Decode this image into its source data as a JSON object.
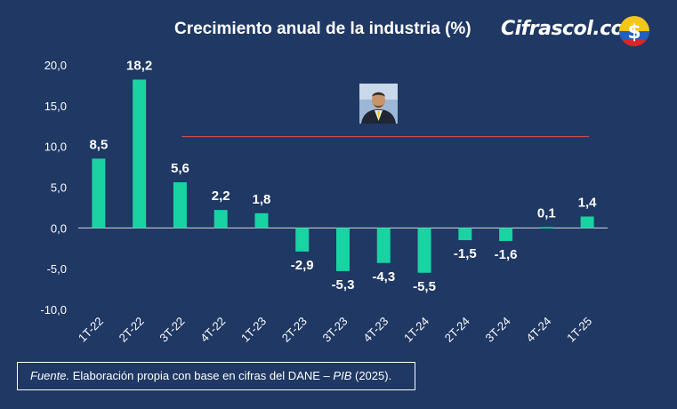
{
  "header": {
    "title": "Crecimiento anual de la industria (%)",
    "brand": "Cifrascol.com",
    "brand_logo_icon": "dollar-coin-colombia-flag-icon"
  },
  "portrait_icon": "person-portrait-photo",
  "source": {
    "label": "Fuente.",
    "text_before": "Elaboración propia con base en cifras del DANE –",
    "text_italic": "PIB",
    "text_after": "(2025)."
  },
  "colors": {
    "background": "#1f3864",
    "bar": "#19d3a2",
    "reference_line": "#e0504f",
    "text": "#ffffff"
  },
  "chart_data": {
    "type": "bar",
    "title": "Crecimiento anual de la industria (%)",
    "categories": [
      "1T-22",
      "2T-22",
      "3T-22",
      "4T-22",
      "1T-23",
      "2T-23",
      "3T-23",
      "4T-23",
      "1T-24",
      "2T-24",
      "3T-24",
      "4T-24",
      "1T-25"
    ],
    "values": [
      8.5,
      18.2,
      5.6,
      2.2,
      1.8,
      -2.9,
      -5.3,
      -4.3,
      -5.5,
      -1.5,
      -1.6,
      0.1,
      1.4
    ],
    "value_labels": [
      "8,5",
      "18,2",
      "5,6",
      "2,2",
      "1,8",
      "-2,9",
      "-5,3",
      "-4,3",
      "-5,5",
      "-1,5",
      "-1,6",
      "0,1",
      "1,4"
    ],
    "ylim": [
      -10,
      20
    ],
    "yticks": [
      20,
      15,
      10,
      5,
      0,
      -5,
      -10
    ],
    "ytick_labels": [
      "20,0",
      "15,0",
      "10,0",
      "5,0",
      "0,0",
      "-5,0",
      "-10,0"
    ],
    "xlabel": "",
    "ylabel": "",
    "grid": false,
    "reference_line_from_category": "3T-22"
  }
}
